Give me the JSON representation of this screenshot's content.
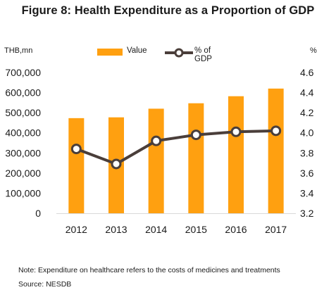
{
  "title": "Figure 8: Health Expenditure as a Proportion of GDP",
  "note": "Note: Expenditure on healthcare refers to the costs of medicines and treatments",
  "source": "Source: NESDB",
  "colors": {
    "bar": "#FFA010",
    "line": "#4A3E3A",
    "marker_fill": "#ffffff"
  },
  "chart_data": {
    "type": "bar",
    "categories": [
      "2012",
      "2013",
      "2014",
      "2015",
      "2016",
      "2017"
    ],
    "series": [
      {
        "name": "Value",
        "type": "bar",
        "axis": "left",
        "values": [
          473000,
          477000,
          520000,
          547000,
          582000,
          620000
        ]
      },
      {
        "name": "% of GDP",
        "type": "line",
        "axis": "right",
        "values": [
          3.84,
          3.69,
          3.92,
          3.98,
          4.01,
          4.02
        ]
      }
    ],
    "legend_labels": [
      "Value",
      "% of GDP"
    ],
    "ylabel_left": "THB,mn",
    "ylabel_right": "%",
    "ylim_left": [
      0,
      700000
    ],
    "yticks_left": [
      "0",
      "100,000",
      "200,000",
      "300,000",
      "400,000",
      "500,000",
      "600,000",
      "700,000"
    ],
    "ylim_right": [
      3.2,
      4.6
    ],
    "yticks_right": [
      "3.2",
      "3.4",
      "3.6",
      "3.8",
      "4.0",
      "4.2",
      "4.4",
      "4.6"
    ],
    "grid": false,
    "legend_position": "top"
  }
}
